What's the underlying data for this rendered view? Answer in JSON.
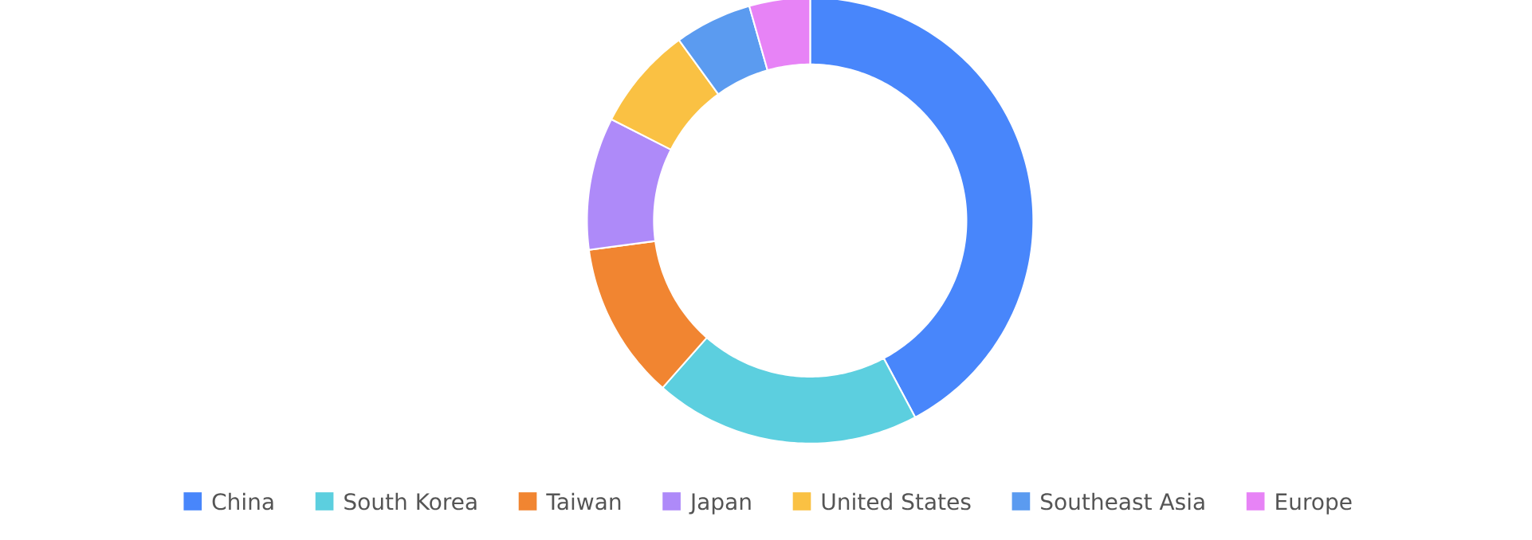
{
  "chart_data": {
    "type": "donut",
    "categories": [
      "China",
      "South Korea",
      "Taiwan",
      "Japan",
      "United States",
      "Southeast Asia",
      "Europe"
    ],
    "values": [
      42.2,
      19.3,
      11.4,
      9.6,
      7.5,
      5.6,
      4.4
    ],
    "colors": [
      "#4886fb",
      "#5ccfdf",
      "#f18531",
      "#ae8af9",
      "#fac143",
      "#5b9bf0",
      "#e783f6"
    ],
    "legend": "bottom"
  }
}
